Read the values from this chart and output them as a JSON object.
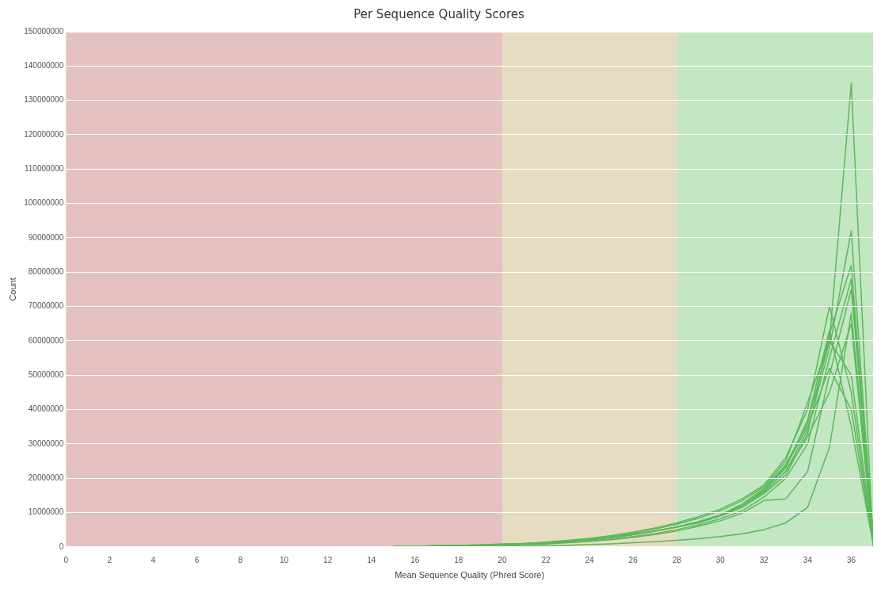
{
  "chart_data": {
    "type": "line",
    "title": "Per Sequence Quality Scores",
    "xlabel": "Mean Sequence Quality (Phred Score)",
    "ylabel": "Count",
    "x": [
      15,
      16,
      17,
      18,
      19,
      20,
      21,
      22,
      23,
      24,
      25,
      26,
      27,
      28,
      29,
      30,
      31,
      32,
      33,
      34,
      35,
      36,
      37
    ],
    "xlim": [
      0,
      37
    ],
    "xticks": [
      0,
      2,
      4,
      6,
      8,
      10,
      12,
      14,
      16,
      18,
      20,
      22,
      24,
      26,
      28,
      30,
      32,
      34,
      36
    ],
    "ylim": [
      0,
      150000000
    ],
    "yticks": [
      0,
      10000000,
      20000000,
      30000000,
      40000000,
      50000000,
      60000000,
      70000000,
      80000000,
      90000000,
      100000000,
      110000000,
      120000000,
      130000000,
      140000000,
      150000000
    ],
    "grid": "y",
    "legend": false,
    "marker": "none",
    "line_style": "solid",
    "bands": [
      {
        "axis": "x",
        "from": 0,
        "to": 20,
        "color": "#e6c1c1"
      },
      {
        "axis": "x",
        "from": 20,
        "to": 28,
        "color": "#e6dcc1"
      },
      {
        "axis": "x",
        "from": 28,
        "to": 37,
        "color": "#c3e6c3"
      }
    ],
    "series": [
      {
        "color": "#5cb85c",
        "values": [
          100000,
          200000,
          300000,
          400000,
          500000,
          700000,
          900000,
          1200000,
          1600000,
          2100000,
          2800000,
          3600000,
          4600000,
          5800000,
          7300000,
          9300000,
          12500000,
          17000000,
          24000000,
          36000000,
          60000000,
          135000000,
          0
        ]
      },
      {
        "color": "#5cb85c",
        "values": [
          100000,
          200000,
          300000,
          400000,
          500000,
          700000,
          900000,
          1200000,
          1600000,
          2100000,
          2800000,
          3600000,
          4600000,
          5800000,
          7300000,
          9300000,
          12000000,
          16000000,
          22000000,
          34000000,
          58000000,
          92000000,
          1000000
        ]
      },
      {
        "color": "#5cb85c",
        "values": [
          100000,
          200000,
          300000,
          400000,
          500000,
          700000,
          900000,
          1200000,
          1600000,
          2100000,
          2800000,
          3600000,
          4600000,
          5800000,
          7000000,
          9000000,
          11500000,
          15500000,
          21000000,
          33000000,
          62000000,
          82000000,
          2000000
        ]
      },
      {
        "color": "#5cb85c",
        "values": [
          100000,
          200000,
          300000,
          400000,
          600000,
          800000,
          1000000,
          1400000,
          1900000,
          2500000,
          3300000,
          4300000,
          5500000,
          7000000,
          8800000,
          11000000,
          14000000,
          18000000,
          26000000,
          40000000,
          70000000,
          45000000,
          1000000
        ]
      },
      {
        "color": "#5cb85c",
        "values": [
          100000,
          200000,
          300000,
          400000,
          500000,
          700000,
          900000,
          1200000,
          1600000,
          2100000,
          2800000,
          3600000,
          4600000,
          5800000,
          7300000,
          9300000,
          12000000,
          16500000,
          23000000,
          37000000,
          63000000,
          35000000,
          1000000
        ]
      },
      {
        "color": "#5cb85c",
        "values": [
          0,
          0,
          100000,
          100000,
          100000,
          200000,
          300000,
          400000,
          500000,
          700000,
          900000,
          1200000,
          1500000,
          1900000,
          2400000,
          3000000,
          3800000,
          5000000,
          7000000,
          11500000,
          29000000,
          68000000,
          3000000
        ]
      },
      {
        "color": "#5cb85c",
        "values": [
          100000,
          100000,
          200000,
          300000,
          400000,
          500000,
          700000,
          900000,
          1200000,
          1600000,
          2100000,
          2800000,
          3600000,
          4600000,
          6000000,
          7600000,
          9800000,
          13500000,
          14000000,
          22000000,
          50000000,
          75000000,
          5000000
        ]
      },
      {
        "color": "#5cb85c",
        "values": [
          100000,
          200000,
          300000,
          400000,
          600000,
          800000,
          1000000,
          1300000,
          1800000,
          2400000,
          3100000,
          4000000,
          5200000,
          6600000,
          8300000,
          10500000,
          13500000,
          17500000,
          25000000,
          42000000,
          60000000,
          50000000,
          2000000
        ]
      },
      {
        "color": "#5cb85c",
        "values": [
          100000,
          200000,
          300000,
          400000,
          500000,
          700000,
          900000,
          1200000,
          1600000,
          2100000,
          2800000,
          3600000,
          4600000,
          5800000,
          7300000,
          9300000,
          12000000,
          16000000,
          22000000,
          32000000,
          45000000,
          65000000,
          1000000
        ]
      },
      {
        "color": "#5cb85c",
        "values": [
          100000,
          200000,
          300000,
          400000,
          500000,
          700000,
          900000,
          1200000,
          1600000,
          2100000,
          2800000,
          3600000,
          4600000,
          5800000,
          7300000,
          9300000,
          12000000,
          16500000,
          23500000,
          35000000,
          52000000,
          40000000,
          1000000
        ]
      },
      {
        "color": "#5cb85c",
        "values": [
          100000,
          100000,
          200000,
          300000,
          400000,
          600000,
          800000,
          1000000,
          1300000,
          1700000,
          2300000,
          3000000,
          3900000,
          5000000,
          6400000,
          8200000,
          10500000,
          14500000,
          20000000,
          30000000,
          55000000,
          78000000,
          1000000
        ]
      }
    ]
  }
}
